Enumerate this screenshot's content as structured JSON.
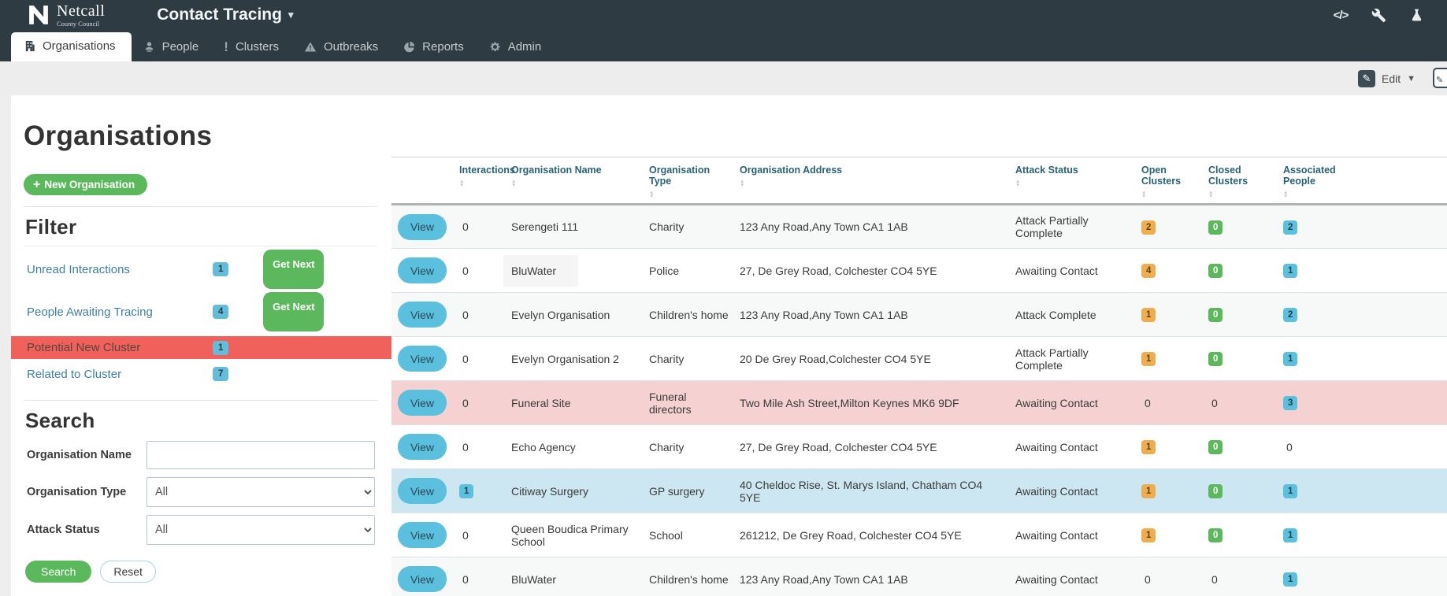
{
  "navbar": {
    "brand": "Netcall",
    "brand_sub": "County Council",
    "app_title": "Contact Tracing",
    "icons": [
      "code-icon",
      "wrench-icon",
      "flask-icon"
    ]
  },
  "tabs": [
    {
      "label": "Organisations",
      "icon": "building-icon",
      "active": true
    },
    {
      "label": "People",
      "icon": "person-icon",
      "active": false
    },
    {
      "label": "Clusters",
      "icon": "exclamation-icon",
      "active": false
    },
    {
      "label": "Outbreaks",
      "icon": "warning-icon",
      "active": false
    },
    {
      "label": "Reports",
      "icon": "pie-chart-icon",
      "active": false
    },
    {
      "label": "Admin",
      "icon": "gear-icon",
      "active": false
    }
  ],
  "toolbar": {
    "edit_label": "Edit"
  },
  "page": {
    "title": "Organisations",
    "new_button_label": "New Organisation"
  },
  "filter": {
    "heading": "Filter",
    "items": [
      {
        "label": "Unread Interactions",
        "count": "1",
        "action": "Get Next",
        "style": "link"
      },
      {
        "label": "People Awaiting Tracing",
        "count": "4",
        "action": "Get Next",
        "style": "link"
      },
      {
        "label": "Potential New Cluster",
        "count": "1",
        "style": "alert"
      },
      {
        "label": "Related to Cluster",
        "count": "7",
        "style": "link"
      }
    ]
  },
  "search": {
    "heading": "Search",
    "name_label": "Organisation Name",
    "name_value": "",
    "type_label": "Organisation Type",
    "type_value": "All",
    "status_label": "Attack Status",
    "status_value": "All",
    "search_label": "Search",
    "reset_label": "Reset"
  },
  "table": {
    "view_label": "View",
    "columns": [
      "Interactions",
      "Organisation Name",
      "Organisation Type",
      "Organisation Address",
      "Attack Status",
      "Open Clusters",
      "Closed Clusters",
      "Associated People"
    ],
    "rows": [
      {
        "interactions": {
          "v": "0"
        },
        "name": "Serengeti 111",
        "type": "Charity",
        "address": "123 Any Road,Any Town CA1 1AB",
        "status": "Attack Partially Complete",
        "open": {
          "v": "2",
          "badge": "yellow"
        },
        "closed": {
          "v": "0",
          "badge": "green"
        },
        "people": {
          "v": "2",
          "badge": "blue"
        }
      },
      {
        "interactions": {
          "v": "0"
        },
        "name": "BluWater",
        "name_highlight": true,
        "type": "Police",
        "address": "27, De Grey Road, Colchester CO4 5YE",
        "status": "Awaiting Contact",
        "open": {
          "v": "4",
          "badge": "yellow"
        },
        "closed": {
          "v": "0",
          "badge": "green"
        },
        "people": {
          "v": "1",
          "badge": "blue"
        }
      },
      {
        "interactions": {
          "v": "0"
        },
        "name": "Evelyn Organisation",
        "type": "Children's home",
        "address": "123 Any Road,Any Town CA1 1AB",
        "status": "Attack Complete",
        "open": {
          "v": "1",
          "badge": "yellow"
        },
        "closed": {
          "v": "0",
          "badge": "green"
        },
        "people": {
          "v": "2",
          "badge": "blue"
        }
      },
      {
        "interactions": {
          "v": "0"
        },
        "name": "Evelyn Organisation 2",
        "type": "Charity",
        "address": "20 De Grey Road,Colchester CO4 5YE",
        "status": "Attack Partially Complete",
        "open": {
          "v": "1",
          "badge": "yellow"
        },
        "closed": {
          "v": "0",
          "badge": "green"
        },
        "people": {
          "v": "1",
          "badge": "blue"
        }
      },
      {
        "interactions": {
          "v": "0"
        },
        "name": "Funeral Site",
        "type": "Funeral directors",
        "address": "Two Mile Ash Street,Milton Keynes MK6 9DF",
        "status": "Awaiting Contact",
        "open": {
          "v": "0"
        },
        "closed": {
          "v": "0"
        },
        "people": {
          "v": "3",
          "badge": "blue"
        },
        "highlight": "pink"
      },
      {
        "interactions": {
          "v": "0"
        },
        "name": "Echo Agency",
        "type": "Charity",
        "address": "27, De Grey Road, Colchester CO4 5YE",
        "status": "Awaiting Contact",
        "open": {
          "v": "1",
          "badge": "yellow"
        },
        "closed": {
          "v": "0",
          "badge": "green"
        },
        "people": {
          "v": "0"
        }
      },
      {
        "interactions": {
          "v": "1",
          "badge": "blue"
        },
        "name": "Citiway Surgery",
        "type": "GP surgery",
        "address": "40 Cheldoc Rise, St. Marys Island, Chatham CO4 5YE",
        "status": "Awaiting Contact",
        "open": {
          "v": "1",
          "badge": "yellow"
        },
        "closed": {
          "v": "0",
          "badge": "green"
        },
        "people": {
          "v": "1",
          "badge": "blue"
        },
        "highlight": "blue"
      },
      {
        "interactions": {
          "v": "0"
        },
        "name": "Queen Boudica Primary School",
        "type": "School",
        "address": "261212, De Grey Road, Colchester CO4 5YE",
        "status": "Awaiting Contact",
        "open": {
          "v": "1",
          "badge": "yellow"
        },
        "closed": {
          "v": "0",
          "badge": "green"
        },
        "people": {
          "v": "1",
          "badge": "blue"
        }
      },
      {
        "interactions": {
          "v": "0"
        },
        "name": "BluWater",
        "type": "Children's home",
        "address": "123 Any Road,Any Town CA1 1AB",
        "status": "Awaiting Contact",
        "open": {
          "v": "0"
        },
        "closed": {
          "v": "0"
        },
        "people": {
          "v": "1",
          "badge": "blue"
        }
      }
    ]
  },
  "colors": {
    "navbar": "#2f3b43",
    "accent_green": "#5cb85c",
    "accent_blue": "#5bc0de",
    "accent_yellow": "#f0ad4e",
    "alert_red": "#f0615c",
    "row_pink": "#f5d2d1",
    "row_blue": "#cde7f2"
  }
}
